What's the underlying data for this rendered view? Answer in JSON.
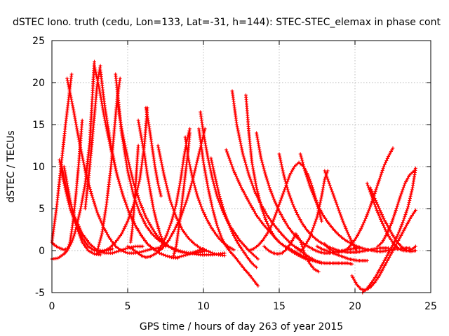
{
  "chart_data": {
    "type": "scatter",
    "title": "dSTEC Iono. truth (cedu, Lon=133, Lat=-31, h=144): STEC-STEC_elemax in phase cont",
    "xlabel": "GPS time / hours of day 263 of year 2015",
    "ylabel": "dSTEC  / TECUs",
    "xlim": [
      0,
      25
    ],
    "ylim": [
      -5,
      25
    ],
    "xticks": [
      0,
      5,
      10,
      15,
      20,
      25
    ],
    "yticks": [
      -5,
      0,
      5,
      10,
      15,
      20,
      25
    ],
    "grid": true,
    "marker": "plus",
    "color": "#ff0000",
    "series": [
      {
        "x": [
          0.0,
          0.2,
          0.5,
          0.8,
          1.1,
          1.3,
          1.5,
          1.7,
          1.9,
          2.2,
          2.5,
          2.8
        ],
        "y": [
          1.0,
          0.6,
          0.3,
          0.1,
          0.3,
          1.0,
          2.0,
          3.5,
          5.0,
          8.0,
          13.0,
          22.5
        ]
      },
      {
        "x": [
          0.0,
          0.3,
          0.6,
          0.9,
          1.1,
          1.3
        ],
        "y": [
          1.0,
          5.0,
          10.0,
          15.0,
          18.0,
          21.0
        ]
      },
      {
        "x": [
          0.0,
          0.4,
          0.8,
          1.0,
          1.2,
          1.4,
          1.6,
          1.8,
          2.0
        ],
        "y": [
          -1.0,
          -0.9,
          -0.4,
          0.0,
          1.0,
          3.5,
          7.0,
          11.0,
          15.5
        ]
      },
      {
        "x": [
          0.5,
          0.8,
          1.2,
          1.6,
          2.0,
          2.4,
          2.8,
          3.2,
          3.6,
          4.0
        ],
        "y": [
          10.8,
          8.0,
          5.0,
          3.0,
          1.5,
          0.5,
          0.0,
          0.0,
          0.0,
          0.2
        ]
      },
      {
        "x": [
          0.6,
          1.0,
          1.5,
          2.0,
          2.5,
          3.0,
          3.5,
          4.0,
          4.5,
          5.0,
          5.5,
          6.0
        ],
        "y": [
          10.5,
          7.0,
          4.0,
          2.0,
          0.8,
          0.0,
          -0.3,
          -0.3,
          0.0,
          0.3,
          0.5,
          0.5
        ]
      },
      {
        "x": [
          0.8,
          1.2,
          1.6,
          2.0,
          2.4,
          2.8,
          3.2
        ],
        "y": [
          10.0,
          6.0,
          3.0,
          1.0,
          0.0,
          -0.4,
          -0.5
        ]
      },
      {
        "x": [
          1.0,
          1.4,
          1.8,
          2.2,
          2.6,
          3.0,
          3.4,
          3.8,
          4.2,
          4.6,
          5.0,
          5.4,
          5.8,
          6.2,
          6.6,
          7.0
        ],
        "y": [
          20.5,
          17.0,
          13.0,
          9.5,
          6.8,
          4.5,
          2.8,
          1.5,
          0.5,
          0.0,
          -0.3,
          -0.3,
          -0.2,
          0.0,
          0.2,
          0.3
        ]
      },
      {
        "x": [
          2.2,
          2.5,
          2.8,
          3.0,
          3.2
        ],
        "y": [
          5.0,
          10.0,
          16.0,
          20.0,
          22.0
        ]
      },
      {
        "x": [
          2.8,
          3.1,
          3.5,
          3.9,
          4.3,
          4.7,
          5.1,
          5.5,
          5.9,
          6.3,
          6.7,
          7.1,
          7.5,
          7.9,
          8.3
        ],
        "y": [
          22.0,
          19.5,
          15.5,
          12.0,
          9.0,
          6.5,
          4.5,
          3.0,
          1.8,
          0.8,
          0.2,
          -0.3,
          -0.6,
          -0.8,
          -0.9
        ]
      },
      {
        "x": [
          3.2,
          3.5,
          3.9,
          4.3,
          4.7,
          5.1,
          5.5,
          5.9,
          6.3,
          6.7,
          7.1,
          7.5,
          7.9,
          8.3,
          8.7,
          9.1,
          9.5,
          10.0
        ],
        "y": [
          21.5,
          17.0,
          12.5,
          9.0,
          6.5,
          4.5,
          3.0,
          1.8,
          0.8,
          0.2,
          -0.3,
          -0.6,
          -0.8,
          -0.8,
          -0.6,
          -0.4,
          -0.1,
          0.2
        ]
      },
      {
        "x": [
          3.0,
          3.3,
          3.6,
          3.9,
          4.1,
          4.3,
          4.5
        ],
        "y": [
          0.0,
          2.0,
          5.5,
          10.0,
          14.0,
          18.0,
          20.5
        ]
      },
      {
        "x": [
          4.3,
          4.6,
          5.0,
          5.4,
          5.8,
          6.2,
          6.6,
          7.0,
          7.4,
          7.8,
          8.2,
          8.6,
          9.0,
          9.4,
          9.8,
          10.2
        ],
        "y": [
          18.0,
          14.5,
          11.0,
          8.0,
          5.8,
          4.0,
          2.7,
          1.6,
          0.9,
          0.4,
          0.0,
          -0.2,
          -0.3,
          -0.3,
          -0.2,
          0.0
        ]
      },
      {
        "x": [
          4.2,
          4.6,
          5.0,
          5.4,
          5.8,
          6.2,
          6.6,
          7.0,
          7.4,
          7.8,
          8.2,
          8.6,
          9.0,
          9.4,
          9.8,
          10.2,
          10.6,
          11.0,
          11.4
        ],
        "y": [
          21.0,
          14.0,
          9.5,
          6.5,
          4.5,
          3.0,
          2.0,
          1.3,
          0.8,
          0.4,
          0.1,
          -0.1,
          -0.3,
          -0.4,
          -0.5,
          -0.5,
          -0.5,
          -0.4,
          -0.3
        ]
      },
      {
        "x": [
          3.0,
          3.4,
          3.8,
          4.2,
          4.6,
          5.0,
          5.4,
          5.8,
          6.1,
          6.3
        ],
        "y": [
          -0.3,
          -0.1,
          0.3,
          1.0,
          2.0,
          3.5,
          5.5,
          8.5,
          12.5,
          17.0
        ]
      },
      {
        "x": [
          5.0,
          5.3,
          5.6,
          5.9,
          6.2,
          6.5,
          6.9,
          7.3,
          7.7,
          8.1,
          8.5,
          8.9,
          9.3,
          9.7,
          10.1
        ],
        "y": [
          0.5,
          0.2,
          -0.2,
          -0.6,
          -0.8,
          -0.7,
          -0.3,
          0.3,
          1.2,
          2.5,
          4.0,
          6.0,
          8.5,
          11.5,
          14.5
        ]
      },
      {
        "x": [
          5.7,
          5.6,
          5.5,
          5.4,
          5.3,
          5.2
        ],
        "y": [
          12.5,
          10.0,
          7.0,
          4.5,
          2.5,
          1.0
        ]
      },
      {
        "x": [
          5.7,
          5.9,
          6.1,
          6.3,
          6.5,
          6.7,
          6.9,
          7.1,
          7.3,
          7.5
        ],
        "y": [
          15.5,
          13.5,
          11.5,
          9.0,
          7.0,
          5.0,
          3.5,
          2.2,
          1.2,
          0.5
        ]
      },
      {
        "x": [
          6.2,
          6.4,
          6.6,
          6.8,
          7.0,
          7.2
        ],
        "y": [
          17.0,
          15.0,
          12.5,
          10.0,
          8.0,
          6.5
        ]
      },
      {
        "x": [
          7.0,
          7.4,
          7.8,
          8.2,
          8.6,
          9.0,
          9.4,
          9.8,
          10.2,
          10.6,
          11.0,
          11.4
        ],
        "y": [
          12.5,
          9.0,
          6.0,
          4.0,
          2.5,
          1.5,
          0.8,
          0.3,
          0.0,
          -0.3,
          -0.5,
          -0.6
        ]
      },
      {
        "x": [
          7.0,
          7.3,
          7.6,
          7.9,
          8.2,
          8.5,
          8.7,
          8.9,
          9.1
        ],
        "y": [
          0.0,
          0.8,
          2.0,
          3.5,
          5.5,
          8.5,
          11.0,
          13.0,
          14.5
        ]
      },
      {
        "x": [
          8.0,
          8.2,
          8.4,
          8.6,
          8.8,
          9.0,
          9.1
        ],
        "y": [
          -0.8,
          0.5,
          3.0,
          6.0,
          9.0,
          12.0,
          14.0
        ]
      },
      {
        "x": [
          8.8,
          9.0,
          9.3,
          9.6,
          9.9,
          10.2,
          10.5,
          10.8,
          11.1,
          11.4,
          11.7,
          12.0
        ],
        "y": [
          13.5,
          11.0,
          8.5,
          6.5,
          5.0,
          3.8,
          2.8,
          2.0,
          1.3,
          0.8,
          0.4,
          0.1
        ]
      },
      {
        "x": [
          9.8,
          10.0,
          10.3,
          10.6,
          10.9,
          11.2,
          11.5,
          11.8,
          12.1,
          12.4,
          12.7,
          13.0,
          13.3,
          13.6
        ],
        "y": [
          16.5,
          14.0,
          11.0,
          8.5,
          6.5,
          5.0,
          3.8,
          2.8,
          2.0,
          1.2,
          0.6,
          0.0,
          -0.5,
          -1.0
        ]
      },
      {
        "x": [
          9.7,
          10.0,
          10.3,
          10.6,
          10.9,
          11.2,
          11.5,
          11.8,
          12.1,
          12.4,
          12.7,
          13.0,
          13.3,
          13.6
        ],
        "y": [
          14.5,
          10.5,
          7.5,
          5.0,
          3.0,
          1.5,
          0.5,
          -0.2,
          -0.8,
          -1.5,
          -2.2,
          -2.8,
          -3.5,
          -4.2
        ]
      },
      {
        "x": [
          10.5,
          10.8,
          11.1,
          11.4,
          11.7,
          12.0,
          12.3,
          12.6,
          12.9,
          13.2,
          13.5
        ],
        "y": [
          11.0,
          8.5,
          6.2,
          4.5,
          3.0,
          1.8,
          0.8,
          0.0,
          -0.8,
          -1.5,
          -2.0
        ]
      },
      {
        "x": [
          11.5,
          12.0,
          12.5,
          13.0,
          13.5,
          14.0,
          14.5,
          15.0,
          15.5,
          16.0,
          16.5,
          17.0
        ],
        "y": [
          12.0,
          9.5,
          7.5,
          5.8,
          4.2,
          3.0,
          2.0,
          1.0,
          0.3,
          -0.3,
          -0.8,
          -1.2
        ]
      },
      {
        "x": [
          11.9,
          12.2,
          12.6,
          13.0,
          13.4,
          13.8,
          14.2,
          14.6,
          15.0,
          15.4,
          15.8,
          16.2,
          16.6,
          17.0,
          17.4,
          17.8
        ],
        "y": [
          19.0,
          15.0,
          11.5,
          9.0,
          7.0,
          5.5,
          4.2,
          3.2,
          2.3,
          1.5,
          0.8,
          0.2,
          -0.3,
          -0.8,
          -1.2,
          -1.5
        ]
      },
      {
        "x": [
          12.8,
          13.0,
          13.2,
          13.5,
          13.8,
          14.1,
          14.4,
          14.7,
          15.0,
          15.3,
          15.6,
          15.9,
          16.2,
          16.5,
          16.8,
          17.1,
          17.4,
          17.7,
          18.0,
          18.3,
          18.6,
          18.9,
          19.2,
          19.5,
          19.8
        ],
        "y": [
          18.5,
          14.0,
          10.5,
          7.5,
          5.3,
          3.7,
          2.5,
          1.6,
          1.0,
          0.6,
          0.3,
          0.0,
          -0.3,
          -0.6,
          -0.9,
          -1.1,
          -1.3,
          -1.4,
          -1.5,
          -1.5,
          -1.5,
          -1.5,
          -1.5,
          -1.5,
          -1.6
        ]
      },
      {
        "x": [
          13.0,
          13.3,
          13.6,
          13.9,
          14.2,
          14.5,
          14.8,
          15.1,
          15.4,
          15.7,
          16.0,
          16.3,
          16.6,
          16.9,
          17.2,
          17.5,
          17.8
        ],
        "y": [
          0.0,
          0.2,
          0.6,
          1.2,
          2.0,
          3.0,
          4.5,
          6.0,
          7.5,
          9.0,
          10.0,
          10.5,
          10.0,
          9.0,
          7.5,
          5.5,
          3.5
        ]
      },
      {
        "x": [
          13.5,
          13.8,
          14.1,
          14.4,
          14.7,
          15.0,
          15.3,
          15.6,
          15.9,
          16.2,
          16.5,
          16.8,
          17.1,
          17.4,
          17.7,
          18.0,
          18.3,
          18.6,
          18.9,
          19.2,
          19.5,
          19.8,
          20.1,
          20.4
        ],
        "y": [
          14.0,
          11.0,
          9.0,
          7.3,
          5.9,
          4.7,
          3.7,
          2.8,
          2.1,
          1.5,
          1.0,
          0.6,
          0.3,
          0.0,
          -0.2,
          -0.3,
          -0.3,
          -0.2,
          -0.1,
          0.0,
          0.1,
          0.2,
          0.3,
          0.3
        ]
      },
      {
        "x": [
          14.0,
          14.3,
          14.6,
          14.9,
          15.2,
          15.5,
          15.8,
          16.1,
          16.4,
          16.7,
          17.0,
          17.3,
          17.6
        ],
        "y": [
          0.5,
          0.0,
          -0.3,
          -0.4,
          -0.3,
          0.2,
          1.0,
          2.0,
          1.2,
          -0.5,
          -1.5,
          -2.2,
          -2.5
        ]
      },
      {
        "x": [
          15.0,
          15.3,
          15.6,
          15.9,
          16.2,
          16.5,
          16.8,
          17.1,
          17.4,
          17.7,
          18.0,
          18.3,
          18.6,
          18.9,
          19.2,
          19.5,
          19.8,
          20.1,
          20.4,
          20.7,
          21.0,
          21.3,
          21.6,
          21.9,
          22.2
        ],
        "y": [
          11.5,
          9.0,
          7.0,
          5.5,
          4.3,
          3.3,
          2.5,
          1.9,
          1.4,
          1.0,
          0.7,
          0.4,
          0.2,
          0.0,
          -0.1,
          -0.2,
          -0.2,
          -0.2,
          -0.1,
          0.0,
          0.1,
          0.2,
          0.3,
          0.3,
          0.3
        ]
      },
      {
        "x": [
          16.4,
          16.7,
          17.0,
          17.3,
          17.6,
          17.9,
          18.2,
          18.5,
          18.8,
          19.1,
          19.4,
          19.7,
          20.0,
          20.3,
          20.6,
          20.9,
          21.2,
          21.5,
          21.8,
          22.1,
          22.4,
          22.7,
          23.0,
          23.3,
          23.6
        ],
        "y": [
          11.5,
          9.5,
          7.8,
          6.4,
          5.2,
          4.2,
          3.4,
          2.7,
          2.1,
          1.6,
          1.2,
          0.9,
          0.6,
          0.4,
          0.2,
          0.1,
          0.0,
          -0.1,
          -0.1,
          0.0,
          0.1,
          0.2,
          0.2,
          0.3,
          0.3
        ]
      },
      {
        "x": [
          16.0,
          16.5,
          17.0,
          17.5,
          17.8,
          18.0,
          18.2
        ],
        "y": [
          0.5,
          0.0,
          1.5,
          4.0,
          6.5,
          8.5,
          9.5
        ]
      },
      {
        "x": [
          18.0,
          18.3,
          18.6,
          18.9,
          19.2,
          19.5,
          19.8,
          20.1
        ],
        "y": [
          9.5,
          8.0,
          6.5,
          5.0,
          3.5,
          2.2,
          1.0,
          0.0
        ]
      },
      {
        "x": [
          17.5,
          17.8,
          18.1,
          18.4,
          18.7,
          19.0,
          19.3,
          19.6,
          19.9,
          20.2,
          20.5,
          20.8
        ],
        "y": [
          0.5,
          0.2,
          0.0,
          -0.2,
          -0.4,
          -0.6,
          -0.8,
          -1.0,
          -1.1,
          -1.2,
          -1.2,
          -1.2
        ]
      },
      {
        "x": [
          18.0,
          18.3,
          18.6,
          18.9,
          19.2,
          19.5,
          19.8,
          20.1,
          20.4,
          20.7,
          21.0,
          21.3,
          21.6,
          21.9,
          22.2,
          22.5
        ],
        "y": [
          0.8,
          0.2,
          -0.1,
          -0.2,
          -0.1,
          0.2,
          0.8,
          1.6,
          2.6,
          3.8,
          5.2,
          6.8,
          8.4,
          10.0,
          11.2,
          12.2
        ]
      },
      {
        "x": [
          19.8,
          20.1,
          20.4,
          20.7,
          21.0,
          21.3,
          21.6,
          21.9,
          22.2,
          22.5,
          22.8,
          23.1,
          23.4,
          23.7,
          24.0
        ],
        "y": [
          -3.0,
          -4.0,
          -4.6,
          -4.7,
          -4.4,
          -3.8,
          -3.0,
          -2.0,
          -1.0,
          0.0,
          1.0,
          2.0,
          3.0,
          4.0,
          4.8
        ]
      },
      {
        "x": [
          20.5,
          20.8,
          21.1,
          21.4,
          21.7,
          22.0,
          22.3,
          22.6,
          22.9,
          23.2,
          23.5,
          23.8,
          24.0
        ],
        "y": [
          -5.0,
          -4.5,
          -3.8,
          -3.0,
          -2.0,
          -1.0,
          0.0,
          1.0,
          2.2,
          3.6,
          5.2,
          7.5,
          9.8
        ]
      },
      {
        "x": [
          20.8,
          21.1,
          21.4,
          21.7,
          22.0,
          22.3,
          22.6,
          22.9,
          23.2,
          23.5,
          23.8,
          24.0
        ],
        "y": [
          8.0,
          6.5,
          5.0,
          3.7,
          2.5,
          1.5,
          0.7,
          0.2,
          0.0,
          0.0,
          0.2,
          0.5
        ]
      },
      {
        "x": [
          21.0,
          21.3,
          21.6,
          21.9,
          22.2,
          22.5,
          22.8,
          23.1,
          23.4,
          23.7,
          24.0
        ],
        "y": [
          7.5,
          6.2,
          5.0,
          3.8,
          2.8,
          1.8,
          1.0,
          0.4,
          0.0,
          -0.1,
          0.0
        ]
      },
      {
        "x": [
          21.5,
          21.8,
          22.1,
          22.4,
          22.7,
          23.0,
          23.3,
          23.6,
          23.9
        ],
        "y": [
          0.5,
          1.0,
          2.0,
          3.2,
          4.8,
          6.5,
          8.0,
          9.0,
          9.5
        ]
      }
    ]
  }
}
